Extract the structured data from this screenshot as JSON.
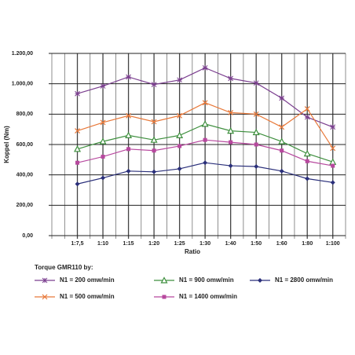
{
  "chart_data": {
    "type": "line",
    "y_label": "Koppel (Nm)",
    "x_label": "Ratio",
    "legend_title": "Torque GMR110 by:",
    "categories": [
      "1:7,5",
      "1:10",
      "1:15",
      "1:20",
      "1:25",
      "1:30",
      "1:40",
      "1:50",
      "1:60",
      "1:80",
      "1:100"
    ],
    "ylim": [
      0,
      1200
    ],
    "yticks": [
      {
        "value": 0,
        "label": "0,00"
      },
      {
        "value": 200,
        "label": "200,00"
      },
      {
        "value": 400,
        "label": "400,00"
      },
      {
        "value": 600,
        "label": "600,00"
      },
      {
        "value": 800,
        "label": "800,00"
      },
      {
        "value": 1000,
        "label": "1.000,00"
      },
      {
        "value": 1200,
        "label": "1.200,00"
      }
    ],
    "grid": true,
    "series": [
      {
        "name": "N1 = 200 omw/min",
        "color": "#7b3f8f",
        "marker": "star",
        "values": [
          935,
          985,
          1045,
          995,
          1025,
          1105,
          1035,
          1005,
          905,
          780,
          715
        ]
      },
      {
        "name": "N1 = 500 omw/min",
        "color": "#e8793a",
        "marker": "x",
        "values": [
          690,
          745,
          790,
          750,
          790,
          875,
          810,
          800,
          715,
          835,
          575
        ]
      },
      {
        "name": "N1 = 900 omw/min",
        "color": "#3e8f3e",
        "marker": "triangle",
        "values": [
          570,
          620,
          660,
          630,
          660,
          735,
          690,
          680,
          620,
          540,
          485
        ]
      },
      {
        "name": "N1 = 1400 omw/min",
        "color": "#b7489e",
        "marker": "square",
        "values": [
          480,
          520,
          570,
          560,
          590,
          630,
          615,
          600,
          560,
          490,
          460
        ]
      },
      {
        "name": "N1 = 2800 omw/min",
        "color": "#2a2f7a",
        "marker": "diamond",
        "values": [
          340,
          380,
          425,
          420,
          440,
          480,
          460,
          455,
          425,
          375,
          350
        ]
      }
    ]
  }
}
